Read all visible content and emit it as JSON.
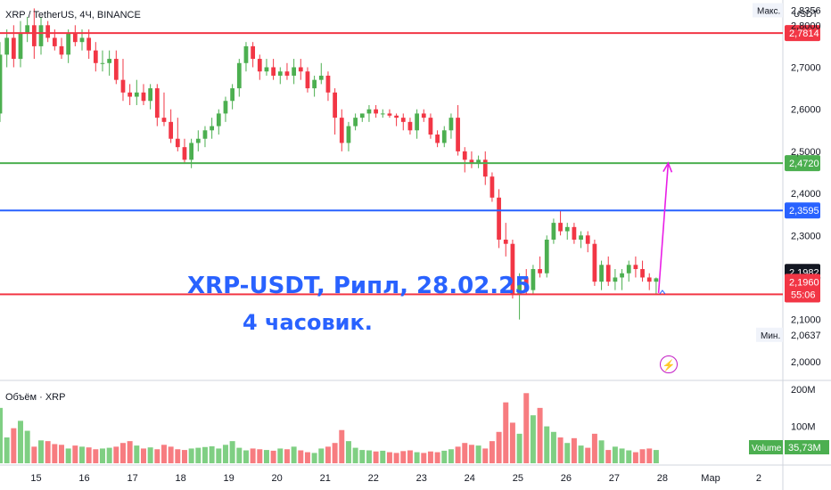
{
  "header": {
    "symbol": "XRP / TetherUS, 4Ч, BINANCE",
    "currency": "USDT"
  },
  "annotation": {
    "line1": "XRP-USDT, Рипл, 28.02.25",
    "line2": "4 часовик."
  },
  "volume_panel": {
    "title": "Объём · XRP",
    "badge_label": "Volume",
    "badge_value": "35,73M"
  },
  "colors": {
    "up": "#4caf50",
    "down": "#f23645",
    "vol_up": "#7fcf83",
    "vol_down": "#f77c80",
    "support": "#f23645",
    "resistance": "#4caf50",
    "pivot": "#2962ff",
    "arrow": "#e91ee6"
  },
  "icons": {
    "lightning": "lightning-circle-icon"
  },
  "chart_data": {
    "type": "candlestick",
    "timeframe": "4Ч",
    "price_axis": {
      "ticks": [
        "2,8000",
        "2,7000",
        "2,6000",
        "2,5000",
        "2,4000",
        "2,3000",
        "2,2000",
        "2,1000",
        "2,0000"
      ],
      "range": [
        1.97,
        2.86
      ],
      "max_label": "Макс.",
      "max_value": "2,8356",
      "min_label": "Мин.",
      "min_value": "2,0637",
      "last_price": "2,1982",
      "current_price": "2,1960",
      "countdown": "55:06"
    },
    "volume_axis": {
      "ticks": [
        "200M",
        "100M"
      ],
      "range": [
        0,
        210
      ]
    },
    "time_axis": {
      "ticks": [
        "15",
        "16",
        "17",
        "18",
        "19",
        "20",
        "21",
        "22",
        "23",
        "24",
        "25",
        "26",
        "27",
        "28",
        "Мар",
        "2"
      ],
      "range": [
        14.3,
        2.55
      ]
    },
    "levels": [
      {
        "price": 2.7814,
        "label": "2,7814",
        "color": "#f23645"
      },
      {
        "price": 2.472,
        "label": "2,4720",
        "color": "#4caf50"
      },
      {
        "price": 2.3595,
        "label": "2,3595",
        "color": "#2962ff"
      },
      {
        "price": 2.16,
        "label": "2,1600",
        "color": "#f23645"
      }
    ],
    "projection": {
      "from_time": 27.97,
      "from_price": 2.163,
      "to_time": 28.17,
      "to_price": 2.472
    },
    "ohlc": [
      [
        2.59,
        2.76,
        2.57,
        2.73
      ],
      [
        2.73,
        2.79,
        2.7,
        2.77
      ],
      [
        2.77,
        2.8,
        2.7,
        2.72
      ],
      [
        2.72,
        2.81,
        2.7,
        2.78
      ],
      [
        2.78,
        2.82,
        2.76,
        2.8
      ],
      [
        2.8,
        2.84,
        2.72,
        2.75
      ],
      [
        2.75,
        2.82,
        2.73,
        2.8
      ],
      [
        2.8,
        2.81,
        2.76,
        2.77
      ],
      [
        2.77,
        2.79,
        2.74,
        2.75
      ],
      [
        2.75,
        2.77,
        2.72,
        2.73
      ],
      [
        2.73,
        2.79,
        2.71,
        2.78
      ],
      [
        2.78,
        2.8,
        2.75,
        2.76
      ],
      [
        2.76,
        2.79,
        2.74,
        2.77
      ],
      [
        2.77,
        2.79,
        2.72,
        2.74
      ],
      [
        2.74,
        2.76,
        2.69,
        2.71
      ],
      [
        2.71,
        2.74,
        2.69,
        2.71
      ],
      [
        2.71,
        2.74,
        2.68,
        2.72
      ],
      [
        2.72,
        2.74,
        2.66,
        2.67
      ],
      [
        2.67,
        2.72,
        2.62,
        2.64
      ],
      [
        2.64,
        2.66,
        2.61,
        2.63
      ],
      [
        2.63,
        2.67,
        2.61,
        2.64
      ],
      [
        2.64,
        2.66,
        2.61,
        2.62
      ],
      [
        2.62,
        2.66,
        2.6,
        2.65
      ],
      [
        2.65,
        2.66,
        2.56,
        2.58
      ],
      [
        2.58,
        2.64,
        2.56,
        2.57
      ],
      [
        2.57,
        2.6,
        2.52,
        2.53
      ],
      [
        2.53,
        2.58,
        2.5,
        2.51
      ],
      [
        2.51,
        2.53,
        2.47,
        2.48
      ],
      [
        2.48,
        2.53,
        2.46,
        2.52
      ],
      [
        2.52,
        2.55,
        2.5,
        2.53
      ],
      [
        2.53,
        2.56,
        2.51,
        2.55
      ],
      [
        2.55,
        2.58,
        2.53,
        2.56
      ],
      [
        2.56,
        2.6,
        2.54,
        2.59
      ],
      [
        2.59,
        2.63,
        2.57,
        2.62
      ],
      [
        2.62,
        2.66,
        2.6,
        2.65
      ],
      [
        2.65,
        2.72,
        2.63,
        2.71
      ],
      [
        2.71,
        2.76,
        2.69,
        2.75
      ],
      [
        2.75,
        2.76,
        2.7,
        2.72
      ],
      [
        2.72,
        2.73,
        2.67,
        2.69
      ],
      [
        2.69,
        2.72,
        2.68,
        2.7
      ],
      [
        2.7,
        2.72,
        2.67,
        2.68
      ],
      [
        2.68,
        2.7,
        2.66,
        2.69
      ],
      [
        2.69,
        2.71,
        2.67,
        2.68
      ],
      [
        2.68,
        2.72,
        2.66,
        2.7
      ],
      [
        2.7,
        2.72,
        2.67,
        2.69
      ],
      [
        2.69,
        2.7,
        2.64,
        2.65
      ],
      [
        2.65,
        2.68,
        2.63,
        2.67
      ],
      [
        2.67,
        2.71,
        2.66,
        2.68
      ],
      [
        2.68,
        2.69,
        2.62,
        2.64
      ],
      [
        2.64,
        2.65,
        2.54,
        2.58
      ],
      [
        2.58,
        2.6,
        2.5,
        2.52
      ],
      [
        2.52,
        2.57,
        2.5,
        2.56
      ],
      [
        2.56,
        2.59,
        2.55,
        2.58
      ],
      [
        2.58,
        2.59,
        2.57,
        2.59
      ],
      [
        2.59,
        2.61,
        2.57,
        2.6
      ],
      [
        2.6,
        2.61,
        2.58,
        2.59
      ],
      [
        2.59,
        2.6,
        2.58,
        2.59
      ],
      [
        2.59,
        2.6,
        2.58,
        2.585
      ],
      [
        2.585,
        2.59,
        2.56,
        2.58
      ],
      [
        2.58,
        2.59,
        2.55,
        2.57
      ],
      [
        2.57,
        2.58,
        2.54,
        2.55
      ],
      [
        2.55,
        2.6,
        2.53,
        2.59
      ],
      [
        2.59,
        2.6,
        2.57,
        2.58
      ],
      [
        2.58,
        2.59,
        2.53,
        2.54
      ],
      [
        2.54,
        2.55,
        2.51,
        2.52
      ],
      [
        2.52,
        2.56,
        2.51,
        2.55
      ],
      [
        2.55,
        2.59,
        2.53,
        2.58
      ],
      [
        2.58,
        2.61,
        2.49,
        2.5
      ],
      [
        2.5,
        2.51,
        2.45,
        2.48
      ],
      [
        2.48,
        2.5,
        2.46,
        2.47
      ],
      [
        2.47,
        2.49,
        2.46,
        2.48
      ],
      [
        2.48,
        2.5,
        2.42,
        2.44
      ],
      [
        2.44,
        2.45,
        2.38,
        2.39
      ],
      [
        2.39,
        2.41,
        2.27,
        2.29
      ],
      [
        2.29,
        2.33,
        2.25,
        2.28
      ],
      [
        2.28,
        2.29,
        2.15,
        2.16
      ],
      [
        2.16,
        2.21,
        2.1,
        2.2
      ],
      [
        2.2,
        2.22,
        2.16,
        2.17
      ],
      [
        2.17,
        2.23,
        2.16,
        2.22
      ],
      [
        2.22,
        2.25,
        2.2,
        2.21
      ],
      [
        2.21,
        2.3,
        2.2,
        2.29
      ],
      [
        2.29,
        2.34,
        2.28,
        2.33
      ],
      [
        2.33,
        2.36,
        2.3,
        2.31
      ],
      [
        2.31,
        2.33,
        2.29,
        2.32
      ],
      [
        2.32,
        2.33,
        2.28,
        2.29
      ],
      [
        2.29,
        2.31,
        2.27,
        2.3
      ],
      [
        2.3,
        2.31,
        2.26,
        2.28
      ],
      [
        2.28,
        2.29,
        2.18,
        2.19
      ],
      [
        2.19,
        2.24,
        2.17,
        2.23
      ],
      [
        2.23,
        2.25,
        2.18,
        2.19
      ],
      [
        2.19,
        2.22,
        2.17,
        2.2
      ],
      [
        2.2,
        2.22,
        2.17,
        2.21
      ],
      [
        2.21,
        2.24,
        2.19,
        2.23
      ],
      [
        2.23,
        2.25,
        2.2,
        2.22
      ],
      [
        2.22,
        2.24,
        2.19,
        2.2
      ],
      [
        2.2,
        2.21,
        2.17,
        2.19
      ],
      [
        2.19,
        2.2,
        2.16,
        2.198
      ]
    ],
    "volume": [
      150,
      70,
      95,
      115,
      88,
      45,
      62,
      60,
      52,
      50,
      40,
      48,
      45,
      43,
      38,
      40,
      42,
      45,
      55,
      60,
      48,
      40,
      43,
      38,
      50,
      45,
      38,
      36,
      40,
      42,
      44,
      46,
      40,
      50,
      60,
      42,
      35,
      40,
      38,
      36,
      34,
      40,
      38,
      45,
      35,
      30,
      28,
      40,
      45,
      55,
      90,
      60,
      42,
      36,
      35,
      32,
      34,
      30,
      28,
      33,
      35,
      30,
      28,
      32,
      30,
      34,
      38,
      45,
      55,
      50,
      48,
      40,
      60,
      85,
      165,
      110,
      80,
      190,
      130,
      150,
      100,
      85,
      70,
      55,
      68,
      48,
      42,
      80,
      62,
      36,
      45,
      40,
      35,
      30,
      38,
      40,
      36
    ]
  }
}
